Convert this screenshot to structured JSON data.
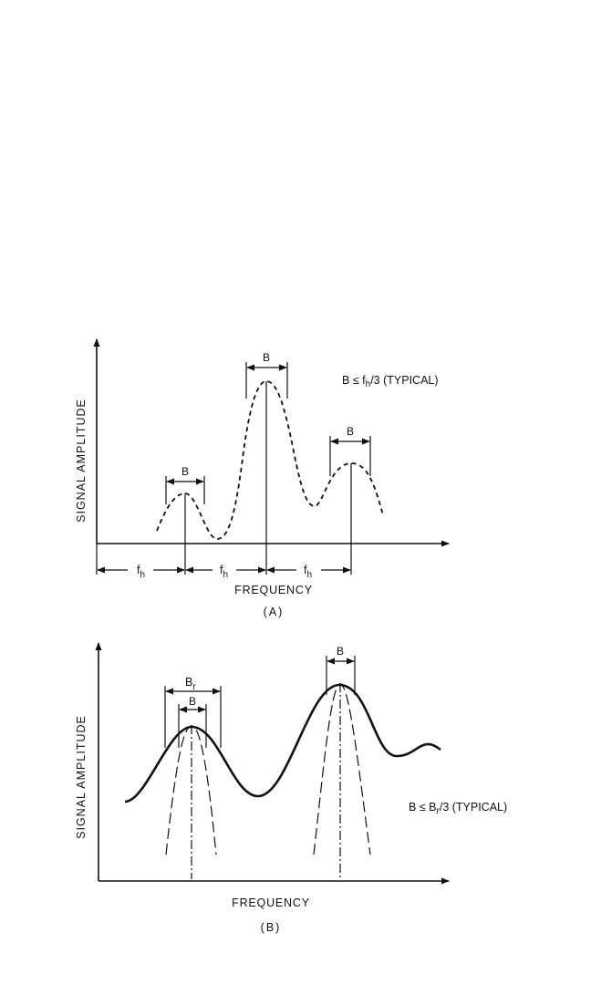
{
  "colors": {
    "ink": "#111111",
    "background": "#ffffff"
  },
  "panel_a": {
    "ylabel": "SIGNAL AMPLITUDE",
    "xlabel": "FREQUENCY",
    "caption": "(A)",
    "annotation": {
      "prefix": "B ",
      "relation": "≤",
      "symbol": " f",
      "subscript": "h",
      "suffix": "/3 (TYPICAL)"
    },
    "bandwidth_label": "B",
    "spacing_label": {
      "symbol": "f",
      "subscript": "h"
    }
  },
  "panel_b": {
    "ylabel": "SIGNAL AMPLITUDE",
    "xlabel": "FREQUENCY",
    "caption": "(B)",
    "annotation": {
      "prefix": "B ",
      "relation": "≤",
      "symbol": " B",
      "subscript": "r",
      "suffix": "/3 (TYPICAL)"
    },
    "bandwidth_label": "B",
    "resolution_label": {
      "symbol": "B",
      "subscript": "r"
    }
  }
}
